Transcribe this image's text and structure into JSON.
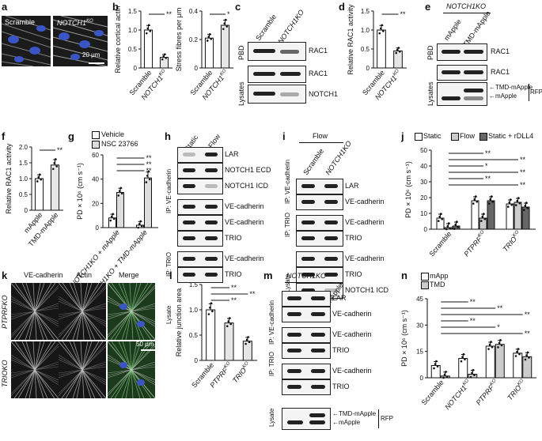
{
  "panel_a": {
    "letter": "a",
    "img1": "Scramble",
    "img2_main": "NOTCH1",
    "img2_sup": "KO",
    "scale": "20 μm"
  },
  "panel_b": {
    "letter": "b",
    "chart1": {
      "ylabel": "Relative cortical actin",
      "categories": [
        "Scramble",
        "NOTCH1KO"
      ],
      "values": [
        1.0,
        0.28
      ],
      "ylim": [
        0,
        1.5
      ],
      "ticks": [
        "0",
        "0.5",
        "1.0",
        "1.5"
      ],
      "sig": "**"
    },
    "chart2": {
      "ylabel": "Stress fibres per μm",
      "categories": [
        "Scramble",
        "NOTCH1KO"
      ],
      "values": [
        0.21,
        0.3
      ],
      "ylim": [
        0,
        0.4
      ],
      "ticks": [
        "0",
        "0.2",
        "0.4"
      ],
      "sig": "*"
    }
  },
  "panel_c": {
    "letter": "c",
    "lanes": [
      "Scramble",
      "NOTCH1KO"
    ],
    "rows": [
      "PBD",
      "Lysates"
    ],
    "bands": [
      "RAC1",
      "RAC1",
      "NOTCH1"
    ]
  },
  "panel_d": {
    "letter": "d",
    "ylabel": "Relative RAC1 activity",
    "categories": [
      "Scramble",
      "NOTCH1KO"
    ],
    "values": [
      1.0,
      0.45
    ],
    "ylim": [
      0,
      1.5
    ],
    "ticks": [
      "0",
      "0.5",
      "1.0",
      "1.5"
    ],
    "sig": "**"
  },
  "panel_e": {
    "letter": "e",
    "header": "NOTCH1KO",
    "lanes": [
      "mApple",
      "TMD-mApple"
    ],
    "rows": [
      "PBD",
      "Lysates"
    ],
    "bands": [
      "RAC1",
      "RAC1"
    ],
    "arrows": [
      "TMD-mApple",
      "mApple"
    ],
    "rfp": "RFP"
  },
  "panel_f": {
    "letter": "f",
    "ylabel": "Relative RAC1 activity",
    "categories": [
      "mApple",
      "TMD-mApple"
    ],
    "values": [
      1.0,
      1.43
    ],
    "ylim": [
      0,
      2.0
    ],
    "ticks": [
      "0",
      "0.5",
      "1.0",
      "1.5",
      "2.0"
    ],
    "sig": "**"
  },
  "panel_g": {
    "letter": "g",
    "legend": [
      "Vehicle",
      "NSC 23766"
    ],
    "ylabel": "PD × 10⁶ (cm s⁻¹)",
    "categories": [
      "NOTCH1KO + mApple",
      "NOTCH1KO + TMD-mApple"
    ],
    "series": [
      {
        "name": "Vehicle",
        "values": [
          8,
          2
        ]
      },
      {
        "name": "NSC 23766",
        "values": [
          29,
          41
        ]
      }
    ],
    "ylim": [
      0,
      60
    ],
    "ticks": [
      "0",
      "20",
      "40",
      "60"
    ],
    "sig": [
      "**",
      "**",
      "**"
    ]
  },
  "panel_h": {
    "letter": "h",
    "lanes": [
      "Static",
      "Flow"
    ],
    "groups": [
      "IP: VE-cadherin",
      "IP: TRIO",
      "Lysate"
    ],
    "bands": [
      "LAR",
      "NOTCH1 ECD",
      "NOTCH1 ICD",
      "VE-cadherin",
      "VE-cadherin",
      "TRIO",
      "VE-cadherin",
      "TRIO"
    ]
  },
  "panel_i": {
    "letter": "i",
    "header": "Flow",
    "lanes": [
      "Scramble",
      "NOTCH1KO"
    ],
    "groups": [
      "IP: VE-cadherin",
      "IP: TRIO",
      "Lysate"
    ],
    "bands": [
      "LAR",
      "VE-cadherin",
      "VE-cadherin",
      "TRIO",
      "VE-cadherin",
      "TRIO",
      "NOTCH1 ICD"
    ]
  },
  "panel_j": {
    "letter": "j",
    "legend": [
      "Static",
      "Flow",
      "Static + rDLL4"
    ],
    "ylabel": "PD × 10⁶ (cm s⁻¹)",
    "categories": [
      "Scramble",
      "PTPRFKO",
      "TRIOKO"
    ],
    "series": [
      {
        "name": "Static",
        "values": [
          7,
          18,
          16
        ]
      },
      {
        "name": "Flow",
        "values": [
          1,
          7,
          17
        ]
      },
      {
        "name": "Static + rDLL4",
        "values": [
          2,
          18,
          14
        ]
      }
    ],
    "ylim": [
      0,
      50
    ],
    "ticks": [
      "0",
      "10",
      "20",
      "30",
      "40",
      "50"
    ],
    "sig": [
      "**",
      "**",
      "*",
      "**",
      "**",
      "**"
    ]
  },
  "panel_k": {
    "letter": "k",
    "cols": [
      "VE-cadherin",
      "Actin",
      "Merge"
    ],
    "rows": [
      "PTPRFKO",
      "TRIOKO"
    ],
    "scale": "50 μm"
  },
  "panel_l": {
    "letter": "l",
    "ylabel": "Relative junction area",
    "categories": [
      "Scramble",
      "PTPRFKO",
      "TRIOKO"
    ],
    "values": [
      1.0,
      0.74,
      0.38
    ],
    "ylim": [
      0,
      1.5
    ],
    "ticks": [
      "0",
      "0.5",
      "1.0",
      "1.5"
    ],
    "sig": [
      "**",
      "**",
      "**"
    ]
  },
  "panel_m": {
    "letter": "m",
    "header": "NOTCH1KO",
    "lanes": [
      "mApple",
      "TMD-mApple"
    ],
    "groups": [
      "IP: VE-cadherin",
      "IP: TRIO",
      "Lysate"
    ],
    "bands": [
      "LAR",
      "VE-cadherin",
      "VE-cadherin",
      "TRIO",
      "VE-cadherin",
      "TRIO"
    ],
    "arrows": [
      "TMD-mApple",
      "mApple"
    ],
    "rfp": "RFP"
  },
  "panel_n": {
    "letter": "n",
    "legend": [
      "mApp",
      "TMD"
    ],
    "ylabel": "PD × 10⁶ (cm s⁻¹)",
    "categories": [
      "Scramble",
      "NOTCH1KO",
      "PTPRFKO",
      "TRIOKO"
    ],
    "series": [
      {
        "name": "mApp",
        "values": [
          7,
          11,
          18,
          14
        ]
      },
      {
        "name": "TMD",
        "values": [
          1,
          2,
          19,
          12
        ]
      }
    ],
    "ylim": [
      0,
      45
    ],
    "ticks": [
      "0",
      "15",
      "30",
      "45"
    ],
    "sig": [
      "**",
      "**",
      "**",
      "**",
      "*",
      "**"
    ]
  }
}
